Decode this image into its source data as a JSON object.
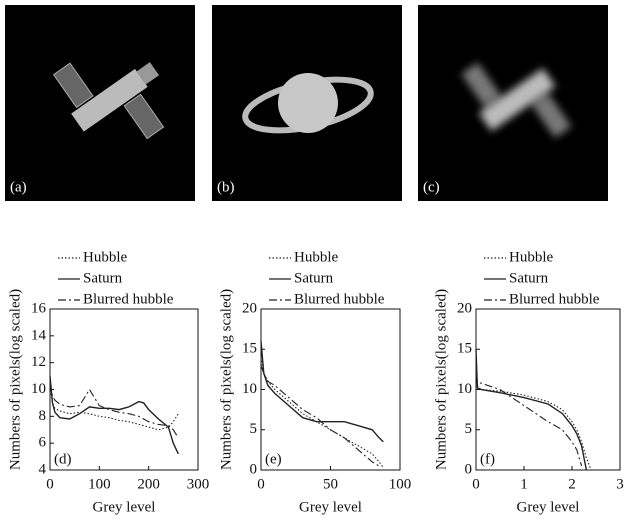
{
  "image_panels": [
    "(a)",
    "(b)",
    "(c)"
  ],
  "chart_data": [
    {
      "type": "line",
      "panel": "(d)",
      "x_label": "Grey level",
      "y_label": "Numbers of pixels(log scaled)",
      "x": [
        0,
        5,
        10,
        20,
        40,
        60,
        80,
        100,
        120,
        140,
        160,
        180,
        190,
        200,
        220,
        240,
        250,
        260
      ],
      "series": [
        {
          "name": "Hubble",
          "color": "#222222",
          "dash": "dotted",
          "values": [
            10.2,
            9,
            8.6,
            8.4,
            8.2,
            8.3,
            8.2,
            8.0,
            7.9,
            7.7,
            7.6,
            7.4,
            7.3,
            7.2,
            7.0,
            7.2,
            7.6,
            8.2
          ]
        },
        {
          "name": "Saturn",
          "color": "#222222",
          "dash": "solid",
          "values": [
            11,
            9,
            8.3,
            7.9,
            7.8,
            8.2,
            8.7,
            8.6,
            8.6,
            8.5,
            8.7,
            9.1,
            9.0,
            8.5,
            7.8,
            7.2,
            6.0,
            5.2
          ]
        },
        {
          "name": "Blurred hubble",
          "color": "#222222",
          "dash": "dashdot",
          "values": [
            10.5,
            9.5,
            9.2,
            8.9,
            8.7,
            8.8,
            10.0,
            8.8,
            8.5,
            8.3,
            8.2,
            8.0,
            7.8,
            7.6,
            7.4,
            7.3,
            7.0,
            6.4
          ]
        }
      ],
      "xlim": [
        0,
        300
      ],
      "xticks": [
        0,
        100,
        200,
        300
      ],
      "ylim": [
        4,
        16
      ],
      "yticks": [
        4,
        6,
        8,
        10,
        12,
        14,
        16
      ]
    },
    {
      "type": "line",
      "panel": "(e)",
      "x_label": "Grey level",
      "y_label": "Numbers of pixels(log scaled)",
      "x": [
        0,
        2,
        5,
        10,
        20,
        30,
        40,
        50,
        60,
        70,
        80,
        85,
        88
      ],
      "series": [
        {
          "name": "Hubble",
          "color": "#222222",
          "dash": "dotted",
          "values": [
            14,
            12,
            11,
            10,
            8.5,
            7,
            6,
            5,
            4,
            3,
            2,
            1,
            0.3
          ]
        },
        {
          "name": "Saturn",
          "color": "#222222",
          "dash": "solid",
          "values": [
            16,
            12,
            10.5,
            9.5,
            8,
            6.5,
            6,
            6,
            6,
            5.5,
            5,
            4,
            3.5
          ]
        },
        {
          "name": "Blurred hubble",
          "color": "#222222",
          "dash": "dashdot",
          "values": [
            13,
            12,
            11,
            10.5,
            9,
            7.5,
            6.5,
            5,
            4,
            2.5,
            1,
            0.5,
            null
          ]
        }
      ],
      "xlim": [
        0,
        100
      ],
      "xticks": [
        0,
        50,
        100
      ],
      "ylim": [
        0,
        20
      ],
      "yticks": [
        0,
        5,
        10,
        15,
        20
      ]
    },
    {
      "type": "line",
      "panel": "(f)",
      "x_label": "Grey level",
      "y_label": "Numbers of pixels(log scaled)",
      "x": [
        0,
        0.03,
        0.1,
        0.5,
        1,
        1.5,
        1.8,
        2,
        2.1,
        2.2,
        2.3,
        2.4
      ],
      "series": [
        {
          "name": "Hubble",
          "color": "#222222",
          "dash": "dotted",
          "values": [
            14,
            10.5,
            10,
            9.8,
            9.3,
            8.5,
            7.5,
            6,
            5,
            3.5,
            1.5,
            0
          ]
        },
        {
          "name": "Saturn",
          "color": "#222222",
          "dash": "solid",
          "values": [
            15,
            10.2,
            10,
            9.6,
            9,
            8.2,
            7,
            5.5,
            4.5,
            3,
            0,
            null
          ]
        },
        {
          "name": "Blurred hubble",
          "color": "#222222",
          "dash": "dashdot",
          "values": [
            12,
            11,
            10.8,
            10,
            8,
            6,
            5,
            3.5,
            2.5,
            0.5,
            null,
            null
          ]
        }
      ],
      "xlim": [
        0,
        3
      ],
      "xticks": [
        0,
        1,
        2,
        3
      ],
      "ylim": [
        0,
        20
      ],
      "yticks": [
        0,
        5,
        10,
        15,
        20
      ]
    }
  ]
}
